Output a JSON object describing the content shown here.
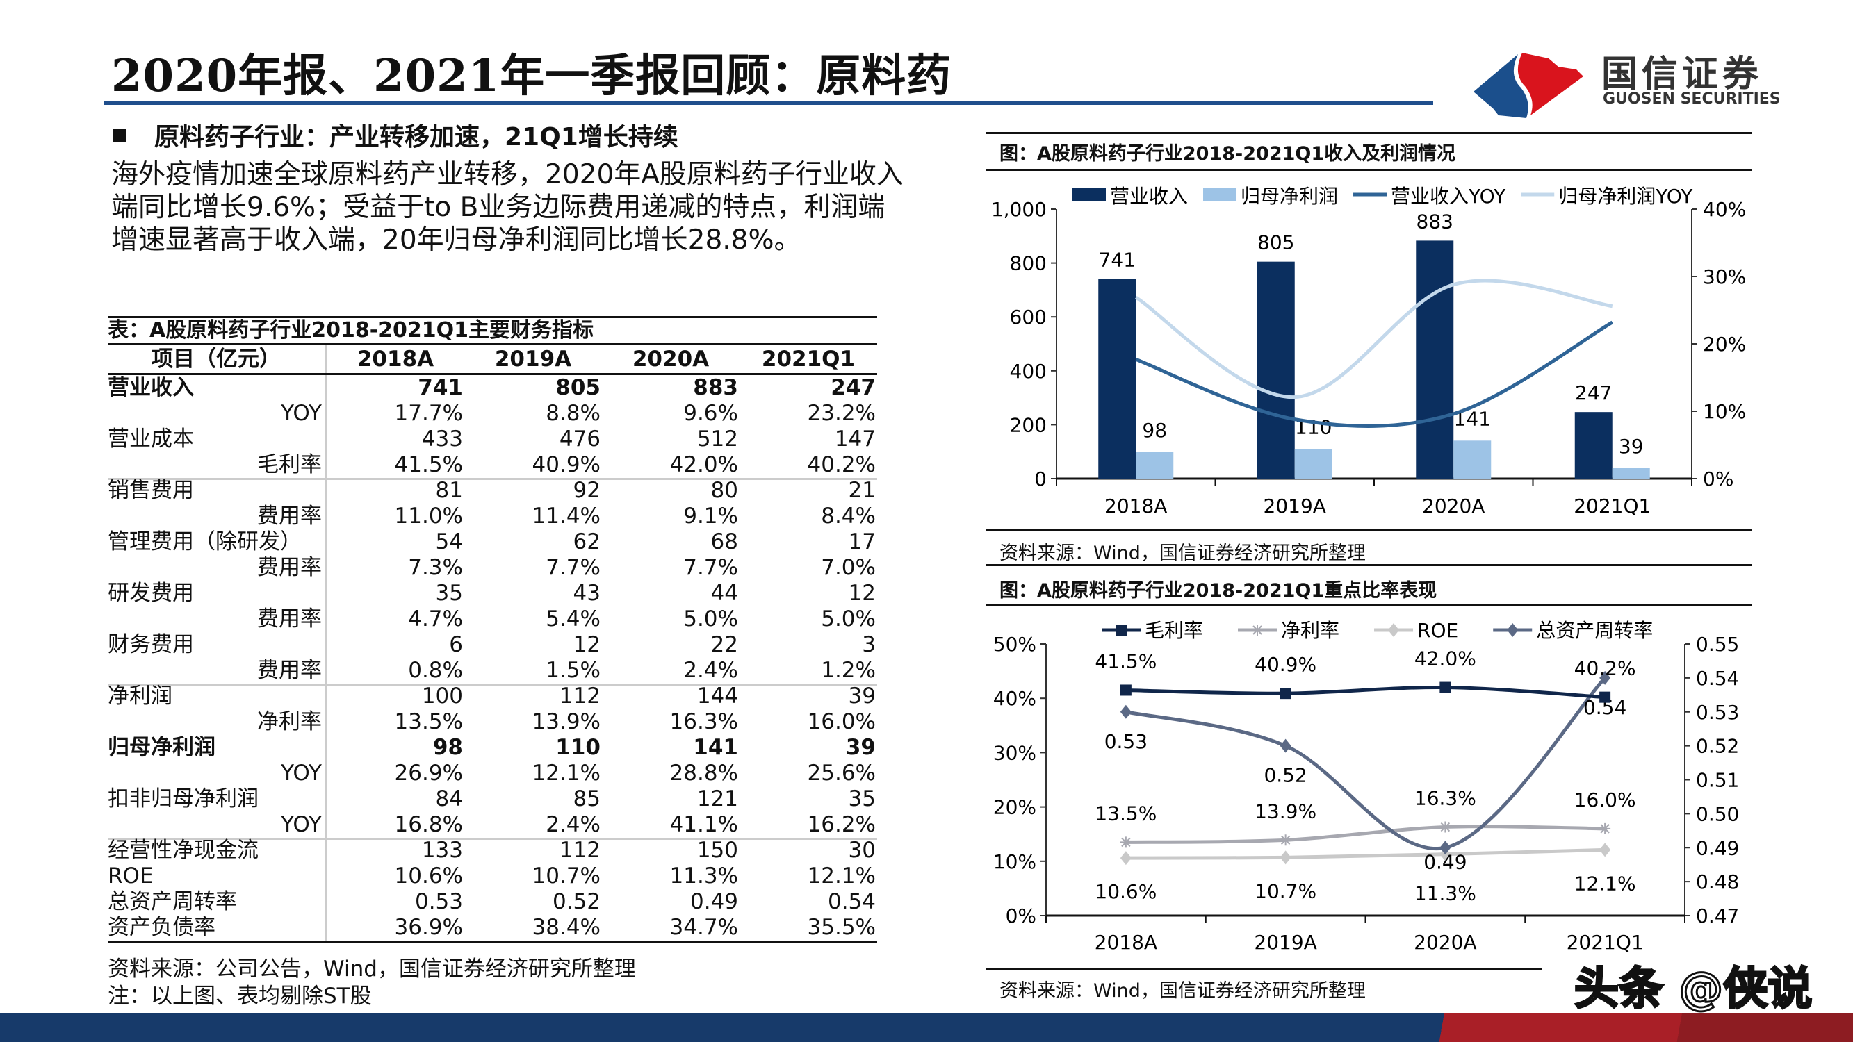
{
  "header": {
    "title": "2020年报、2021年一季报回顾：原料药",
    "logo_cn": "国信证券",
    "logo_en": "GUOSEN SECURITIES"
  },
  "bullet": "原料药子行业：产业转移加速，21Q1增长持续",
  "paragraph": "海外疫情加速全球原料药产业转移，2020年A股原料药子行业收入端同比增长9.6%；受益于to B业务边际费用递减的特点，利润端增速显著高于收入端，20年归母净利润同比增长28.8%。",
  "table": {
    "title": "表：A股原料药子行业2018-2021Q1主要财务指标",
    "headers": [
      "项目（亿元）",
      "2018A",
      "2019A",
      "2020A",
      "2021Q1"
    ],
    "rows": [
      {
        "label": "营业收入",
        "sub": false,
        "bold": true,
        "sep": false,
        "values": [
          "741",
          "805",
          "883",
          "247"
        ]
      },
      {
        "label": "YOY",
        "sub": true,
        "bold": false,
        "sep": false,
        "values": [
          "17.7%",
          "8.8%",
          "9.6%",
          "23.2%"
        ]
      },
      {
        "label": "营业成本",
        "sub": false,
        "bold": false,
        "sep": false,
        "values": [
          "433",
          "476",
          "512",
          "147"
        ]
      },
      {
        "label": "毛利率",
        "sub": true,
        "bold": false,
        "sep": false,
        "values": [
          "41.5%",
          "40.9%",
          "42.0%",
          "40.2%"
        ]
      },
      {
        "label": "销售费用",
        "sub": false,
        "bold": false,
        "sep": true,
        "values": [
          "81",
          "92",
          "80",
          "21"
        ]
      },
      {
        "label": "费用率",
        "sub": true,
        "bold": false,
        "sep": false,
        "values": [
          "11.0%",
          "11.4%",
          "9.1%",
          "8.4%"
        ]
      },
      {
        "label": "管理费用（除研发）",
        "sub": false,
        "bold": false,
        "sep": false,
        "values": [
          "54",
          "62",
          "68",
          "17"
        ]
      },
      {
        "label": "费用率",
        "sub": true,
        "bold": false,
        "sep": false,
        "values": [
          "7.3%",
          "7.7%",
          "7.7%",
          "7.0%"
        ]
      },
      {
        "label": "研发费用",
        "sub": false,
        "bold": false,
        "sep": false,
        "values": [
          "35",
          "43",
          "44",
          "12"
        ]
      },
      {
        "label": "费用率",
        "sub": true,
        "bold": false,
        "sep": false,
        "values": [
          "4.7%",
          "5.4%",
          "5.0%",
          "5.0%"
        ]
      },
      {
        "label": "财务费用",
        "sub": false,
        "bold": false,
        "sep": false,
        "values": [
          "6",
          "12",
          "22",
          "3"
        ]
      },
      {
        "label": "费用率",
        "sub": true,
        "bold": false,
        "sep": false,
        "values": [
          "0.8%",
          "1.5%",
          "2.4%",
          "1.2%"
        ]
      },
      {
        "label": "净利润",
        "sub": false,
        "bold": false,
        "sep": true,
        "values": [
          "100",
          "112",
          "144",
          "39"
        ]
      },
      {
        "label": "净利率",
        "sub": true,
        "bold": false,
        "sep": false,
        "values": [
          "13.5%",
          "13.9%",
          "16.3%",
          "16.0%"
        ]
      },
      {
        "label": "归母净利润",
        "sub": false,
        "bold": true,
        "sep": false,
        "values": [
          "98",
          "110",
          "141",
          "39"
        ]
      },
      {
        "label": "YOY",
        "sub": true,
        "bold": false,
        "sep": false,
        "values": [
          "26.9%",
          "12.1%",
          "28.8%",
          "25.6%"
        ]
      },
      {
        "label": "扣非归母净利润",
        "sub": false,
        "bold": false,
        "sep": false,
        "values": [
          "84",
          "85",
          "121",
          "35"
        ]
      },
      {
        "label": "YOY",
        "sub": true,
        "bold": false,
        "sep": false,
        "values": [
          "16.8%",
          "2.4%",
          "41.1%",
          "16.2%"
        ]
      },
      {
        "label": "经营性净现金流",
        "sub": false,
        "bold": false,
        "sep": true,
        "values": [
          "133",
          "112",
          "150",
          "30"
        ]
      },
      {
        "label": "ROE",
        "sub": false,
        "bold": false,
        "sep": false,
        "values": [
          "10.6%",
          "10.7%",
          "11.3%",
          "12.1%"
        ]
      },
      {
        "label": "总资产周转率",
        "sub": false,
        "bold": false,
        "sep": false,
        "values": [
          "0.53",
          "0.52",
          "0.49",
          "0.54"
        ]
      },
      {
        "label": "资产负债率",
        "sub": false,
        "bold": false,
        "sep": false,
        "values": [
          "36.9%",
          "38.4%",
          "34.7%",
          "35.5%"
        ]
      }
    ],
    "source": "资料来源：公司公告，Wind，国信证券经济研究所整理",
    "note": "注：以上图、表均剔除ST股"
  },
  "chart_data": [
    {
      "type": "bar",
      "title": "图：A股原料药子行业2018-2021Q1收入及利润情况",
      "categories": [
        "2018A",
        "2019A",
        "2020A",
        "2021Q1"
      ],
      "ylim": [
        0,
        1000
      ],
      "y_ticks": [
        "0",
        "200",
        "400",
        "600",
        "800",
        "1,000"
      ],
      "y2lim": [
        0,
        40
      ],
      "y2_ticks": [
        "0%",
        "10%",
        "20%",
        "30%",
        "40%"
      ],
      "legend": "top",
      "series": [
        {
          "name": "营业收入",
          "type": "bar",
          "axis": "left",
          "color": "#0b2f5f",
          "values": [
            741,
            805,
            883,
            247
          ]
        },
        {
          "name": "归母净利润",
          "type": "bar",
          "axis": "left",
          "color": "#9dc3e6",
          "values": [
            98,
            110,
            141,
            39
          ]
        },
        {
          "name": "营业收入YOY",
          "type": "line",
          "axis": "right",
          "color": "#2f6496",
          "values": [
            17.7,
            8.8,
            9.6,
            23.2
          ]
        },
        {
          "name": "归母净利润YOY",
          "type": "line",
          "axis": "right",
          "color": "#c3d8eb",
          "values": [
            26.9,
            12.1,
            28.8,
            25.6
          ]
        }
      ],
      "source": "资料来源：Wind，国信证券经济研究所整理"
    },
    {
      "type": "line",
      "title": "图：A股原料药子行业2018-2021Q1重点比率表现",
      "categories": [
        "2018A",
        "2019A",
        "2020A",
        "2021Q1"
      ],
      "ylim": [
        0,
        50
      ],
      "y_ticks": [
        "0%",
        "10%",
        "20%",
        "30%",
        "40%",
        "50%"
      ],
      "y2lim": [
        0.47,
        0.55
      ],
      "y2_ticks": [
        "0.47",
        "0.48",
        "0.49",
        "0.50",
        "0.51",
        "0.52",
        "0.53",
        "0.54",
        "0.55"
      ],
      "legend": "top",
      "series": [
        {
          "name": "毛利率",
          "axis": "left",
          "color": "#10264a",
          "marker": "square",
          "values": [
            41.5,
            40.9,
            42.0,
            40.2
          ],
          "labels": [
            "41.5%",
            "40.9%",
            "42.0%",
            "40.2%"
          ]
        },
        {
          "name": "净利率",
          "axis": "left",
          "color": "#a7a8b0",
          "marker": "star",
          "values": [
            13.5,
            13.9,
            16.3,
            16.0
          ],
          "labels": [
            "13.5%",
            "13.9%",
            "16.3%",
            "16.0%"
          ]
        },
        {
          "name": "ROE",
          "axis": "left",
          "color": "#c9c9c9",
          "marker": "diamond",
          "values": [
            10.6,
            10.7,
            11.3,
            12.1
          ],
          "labels": [
            "10.6%",
            "10.7%",
            "11.3%",
            "12.1%"
          ]
        },
        {
          "name": "总资产周转率",
          "axis": "right",
          "color": "#5b6985",
          "marker": "diamond",
          "values": [
            0.53,
            0.52,
            0.49,
            0.54
          ],
          "labels": [
            "0.53",
            "0.52",
            "0.49",
            "0.54"
          ]
        }
      ],
      "source": "资料来源：Wind，国信证券经济研究所整理"
    }
  ],
  "watermark": "头条 @侠说"
}
